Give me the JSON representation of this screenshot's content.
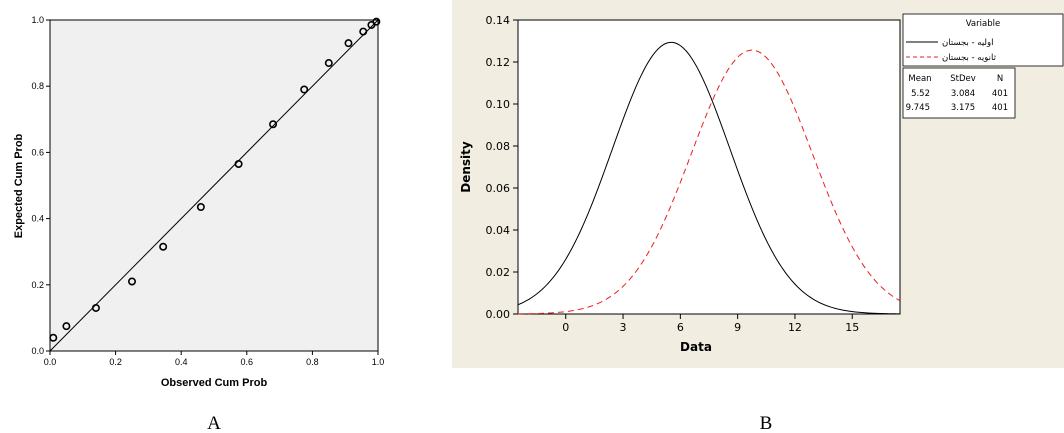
{
  "chart_data": [
    {
      "type": "scatter",
      "panel_label": "A",
      "xlabel": "Observed Cum Prob",
      "ylabel": "Expected Cum Prob",
      "xlim": [
        0,
        1
      ],
      "ylim": [
        0,
        1
      ],
      "x_ticks": [
        "0.0",
        "0.2",
        "0.4",
        "0.6",
        "0.8",
        "1.0"
      ],
      "y_ticks": [
        "0.0",
        "0.2",
        "0.4",
        "0.6",
        "0.8",
        "1.0"
      ],
      "reference_line": [
        [
          0,
          0
        ],
        [
          1,
          1
        ]
      ],
      "points": [
        {
          "x": 0.01,
          "y": 0.04
        },
        {
          "x": 0.05,
          "y": 0.075
        },
        {
          "x": 0.14,
          "y": 0.13
        },
        {
          "x": 0.25,
          "y": 0.21
        },
        {
          "x": 0.345,
          "y": 0.315
        },
        {
          "x": 0.46,
          "y": 0.435
        },
        {
          "x": 0.575,
          "y": 0.565
        },
        {
          "x": 0.68,
          "y": 0.685
        },
        {
          "x": 0.775,
          "y": 0.79
        },
        {
          "x": 0.85,
          "y": 0.87
        },
        {
          "x": 0.91,
          "y": 0.93
        },
        {
          "x": 0.955,
          "y": 0.965
        },
        {
          "x": 0.98,
          "y": 0.985
        },
        {
          "x": 0.995,
          "y": 0.995
        }
      ],
      "background": "#f0f0f0"
    },
    {
      "type": "line",
      "panel_label": "B",
      "xlabel": "Data",
      "ylabel": "Density",
      "xlim": [
        -2.5,
        17.5
      ],
      "ylim": [
        0,
        0.14
      ],
      "x_ticks": [
        "0",
        "3",
        "6",
        "9",
        "12",
        "15"
      ],
      "y_ticks": [
        "0.00",
        "0.02",
        "0.04",
        "0.06",
        "0.08",
        "0.10",
        "0.12",
        "0.14"
      ],
      "series": [
        {
          "name": "اولیه - بجستان",
          "distribution": "normal",
          "mean": 5.52,
          "stdev": 3.084,
          "n": 401,
          "color": "#000000",
          "dash": "solid"
        },
        {
          "name": "ثانویه - بجستان",
          "distribution": "normal",
          "mean": 9.745,
          "stdev": 3.175,
          "n": 401,
          "color": "#e8211d",
          "dash": "dashed"
        }
      ],
      "legend": {
        "title": "Variable",
        "placement": "right",
        "stats_headers": [
          "Mean",
          "StDev",
          "N"
        ],
        "stats_rows": [
          [
            "5.52",
            "3.084",
            "401"
          ],
          [
            "9.745",
            "3.175",
            "401"
          ]
        ]
      },
      "background": "#f1ede0"
    }
  ]
}
